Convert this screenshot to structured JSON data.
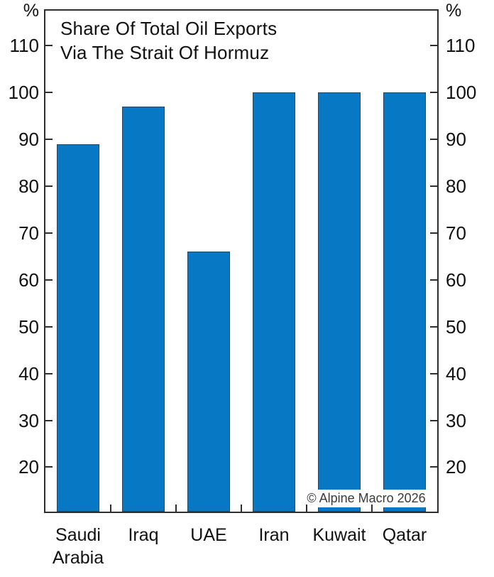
{
  "chart_data": {
    "type": "bar",
    "title_line1": "Share Of Total Oil Exports",
    "title_line2": "Via The Strait Of Hormuz",
    "categories": [
      "Saudi Arabia",
      "Iraq",
      "UAE",
      "Iran",
      "Kuwait",
      "Qatar"
    ],
    "category_labels": [
      "Saudi\nArabia",
      "Iraq",
      "UAE",
      "Iran",
      "Kuwait",
      "Qatar"
    ],
    "values": [
      89,
      97,
      66,
      100,
      100,
      100
    ],
    "unit": "%",
    "ylabel": "%",
    "yticks": [
      20,
      30,
      40,
      50,
      60,
      70,
      80,
      90,
      100,
      110
    ],
    "ylim": [
      10.5,
      117.5
    ],
    "grid": false,
    "legend": "none",
    "watermark": "© Alpine Macro 2026",
    "colors": {
      "bar": "#0678c4",
      "bar_border": "#26455e",
      "axis": "#2e2e2e",
      "text": "#111111",
      "watermark_text": "#3a3a3a",
      "background": "#ffffff"
    }
  }
}
